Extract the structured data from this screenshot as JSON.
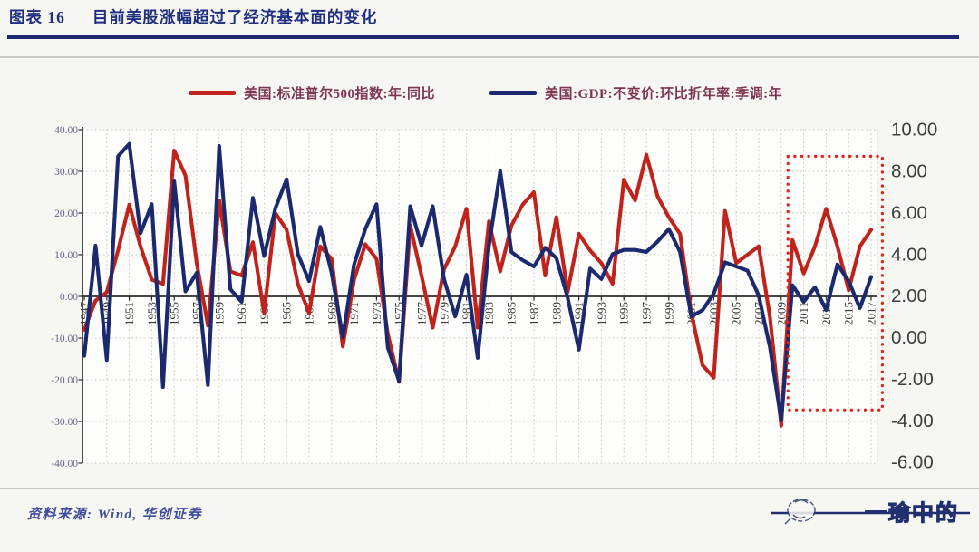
{
  "title": {
    "prefix": "图表 16",
    "text": "目前美股涨幅超过了经济基本面的变化"
  },
  "legend": [
    {
      "label": "美国:标准普尔500指数:年:同比",
      "color": "#bf231b"
    },
    {
      "label": "美国:GDP:不变价:环比折年率:季调:年",
      "color": "#1b2a6e"
    }
  ],
  "source": "资料来源: Wind, 华创证券",
  "logo": {
    "text": "一瑜中的"
  },
  "colors": {
    "title": "#1f2e80",
    "title_rule": "#1c2a74",
    "axis": "#2b2b2b",
    "grid": "#cfcfc9",
    "left_labels": "#6c5f90",
    "right_labels": "#3d3d3d",
    "x_labels": "#3a3a3a",
    "highlight_box": "#e3241d",
    "legend_text": "#7c3552",
    "source_text": "#3f4c9b",
    "logo": "#222f6f",
    "plot_bg": "#fdfdfb"
  },
  "chart_data": {
    "type": "line",
    "years": [
      1947,
      1948,
      1949,
      1950,
      1951,
      1952,
      1953,
      1954,
      1955,
      1956,
      1957,
      1958,
      1959,
      1960,
      1961,
      1962,
      1963,
      1964,
      1965,
      1966,
      1967,
      1968,
      1969,
      1970,
      1971,
      1972,
      1973,
      1974,
      1975,
      1976,
      1977,
      1978,
      1979,
      1980,
      1981,
      1982,
      1983,
      1984,
      1985,
      1986,
      1987,
      1988,
      1989,
      1990,
      1991,
      1992,
      1993,
      1994,
      1995,
      1996,
      1997,
      1998,
      1999,
      2000,
      2001,
      2002,
      2003,
      2004,
      2005,
      2006,
      2007,
      2008,
      2009,
      2010,
      2011,
      2012,
      2013,
      2014,
      2015,
      2016,
      2017
    ],
    "series": [
      {
        "name": "美国:标准普尔500指数:年:同比",
        "axis": "left",
        "color": "#bf231b",
        "values": [
          -8,
          -1,
          1,
          11,
          22,
          12,
          4,
          3,
          35,
          29,
          8,
          -7,
          23,
          6,
          5,
          13,
          -4,
          20,
          16,
          3,
          -4,
          12,
          9,
          -12,
          4,
          12.5,
          9,
          -9,
          -20.5,
          17,
          5,
          -7.5,
          6.5,
          12,
          21,
          -7.5,
          18,
          6,
          17,
          22,
          25,
          5,
          19,
          1,
          15,
          11,
          8,
          3,
          28,
          23,
          34,
          24,
          19,
          15,
          -4,
          -16.5,
          -19.5,
          20.5,
          8,
          10,
          12,
          -5,
          -31,
          13.5,
          5.5,
          12,
          21,
          12,
          1.5,
          12,
          16
        ]
      },
      {
        "name": "美国:GDP:不变价:环比折年率:季调:年",
        "axis": "right",
        "color": "#1b2a6e",
        "values": [
          -0.9,
          4.4,
          -1.1,
          8.7,
          9.3,
          5.0,
          6.4,
          -2.4,
          7.5,
          2.2,
          3.1,
          -2.3,
          9.2,
          2.3,
          1.7,
          6.7,
          3.9,
          6.2,
          7.6,
          4.0,
          2.7,
          5.3,
          3.1,
          0.0,
          3.5,
          5.2,
          6.4,
          -0.5,
          -2.1,
          6.3,
          4.4,
          6.3,
          2.8,
          1.0,
          3.0,
          -1.0,
          4.4,
          8.0,
          4.1,
          3.7,
          3.4,
          4.3,
          3.8,
          1.9,
          -0.6,
          3.3,
          2.8,
          4.0,
          4.2,
          4.2,
          4.1,
          4.6,
          5.2,
          4.1,
          1.0,
          1.3,
          2.1,
          3.6,
          3.4,
          3.2,
          2.0,
          -0.5,
          -4.0,
          2.5,
          1.7,
          2.4,
          1.3,
          3.5,
          2.7,
          1.4,
          2.9
        ]
      }
    ],
    "left_axis": {
      "min": -40,
      "max": 40,
      "ticks": [
        40,
        30,
        20,
        10,
        0,
        -10,
        -20,
        -30,
        -40
      ]
    },
    "right_axis": {
      "min": -6,
      "max": 10,
      "ticks": [
        10,
        8,
        6,
        4,
        2,
        0,
        -2,
        -4,
        -6
      ]
    },
    "x_tick_years": [
      1947,
      1949,
      1951,
      1953,
      1955,
      1957,
      1959,
      1961,
      1963,
      1965,
      1967,
      1969,
      1971,
      1973,
      1975,
      1977,
      1979,
      1981,
      1983,
      1985,
      1987,
      1989,
      1991,
      1993,
      1995,
      1997,
      1999,
      2001,
      2003,
      2005,
      2007,
      2009,
      2011,
      2013,
      2015,
      2017
    ],
    "grid": true,
    "legend_position": "top-center",
    "highlight_box": {
      "from_year": 2009.6,
      "to_year": 2018,
      "top_value_right_axis": 8.7,
      "bottom_value_right_axis": -3.5
    }
  }
}
